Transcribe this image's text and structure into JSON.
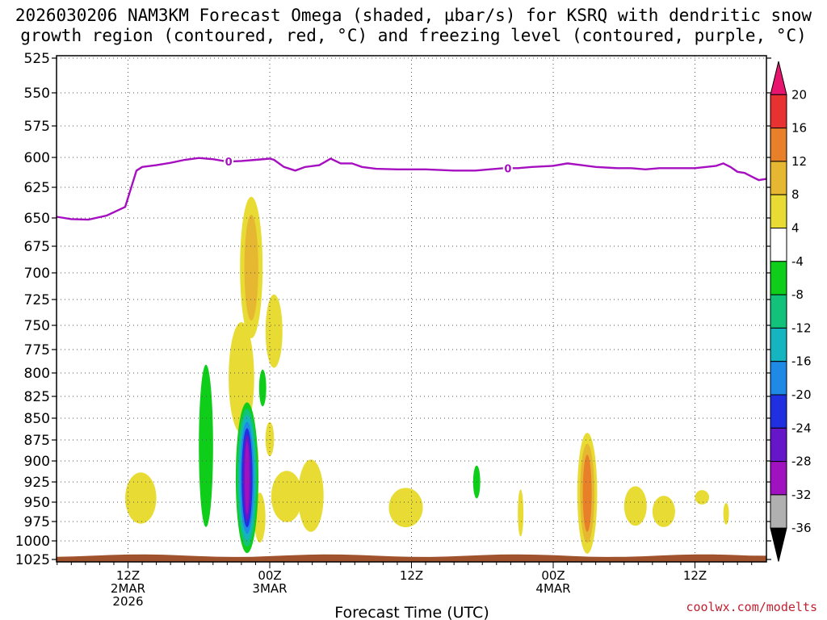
{
  "chart_data": {
    "type": "heatmap",
    "title_line1": "2026030206 NAM3KM Forecast Omega (shaded, µbar/s) for KSRQ with dendritic snow",
    "title_line2": "growth region (contoured, red, °C) and freezing level (contoured, purple, °C)",
    "xlabel": "Forecast Time (UTC)",
    "credit": "coolwx.com/modelts",
    "y_axis": {
      "label_values": [
        "525",
        "550",
        "575",
        "600",
        "625",
        "650",
        "675",
        "700",
        "725",
        "750",
        "775",
        "800",
        "825",
        "850",
        "875",
        "900",
        "925",
        "950",
        "975",
        "1000",
        "1025"
      ],
      "range_hpa": [
        525,
        1025
      ]
    },
    "x_axis": {
      "range_hours": [
        -2,
        48
      ],
      "ticks": [
        {
          "hour": 4,
          "lines": [
            "12Z",
            "2MAR",
            "2026"
          ]
        },
        {
          "hour": 14,
          "lines": [
            "00Z",
            "3MAR"
          ]
        },
        {
          "hour": 24,
          "lines": [
            "12Z"
          ]
        },
        {
          "hour": 34,
          "lines": [
            "00Z",
            "4MAR"
          ]
        },
        {
          "hour": 44,
          "lines": [
            "12Z"
          ]
        }
      ]
    },
    "colorbar": {
      "labels": [
        "20",
        "16",
        "12",
        "8",
        "4",
        "-4",
        "-8",
        "-12",
        "-16",
        "-20",
        "-24",
        "-28",
        "-32",
        "-36"
      ],
      "colors": [
        "#e8156e",
        "#e83232",
        "#e8802a",
        "#e6b832",
        "#e8dc34",
        "#ffffff",
        "#0fce19",
        "#12c27a",
        "#14b5c0",
        "#1e8ae6",
        "#2030e0",
        "#6416c8",
        "#a012c0",
        "#b0b0b0",
        "#000000"
      ]
    },
    "freezing_level": {
      "label": "0",
      "label_hours": [
        11.1,
        30.8
      ],
      "points": [
        [
          -2,
          649
        ],
        [
          0,
          651
        ],
        [
          1.2,
          651.5
        ],
        [
          2.5,
          648
        ],
        [
          3.8,
          641
        ],
        [
          4.6,
          611
        ],
        [
          5,
          608
        ],
        [
          6,
          606.5
        ],
        [
          7,
          604.5
        ],
        [
          8,
          602
        ],
        [
          9,
          600.5
        ],
        [
          10,
          601.5
        ],
        [
          11,
          603.5
        ],
        [
          12,
          603
        ],
        [
          13,
          602
        ],
        [
          14,
          601
        ],
        [
          14.3,
          602
        ],
        [
          15,
          608
        ],
        [
          15.8,
          611
        ],
        [
          16.5,
          608
        ],
        [
          17.5,
          606.5
        ],
        [
          18.3,
          601
        ],
        [
          19,
          605
        ],
        [
          19.8,
          605
        ],
        [
          20.5,
          608
        ],
        [
          21.5,
          609.5
        ],
        [
          23,
          610
        ],
        [
          25,
          610
        ],
        [
          27,
          611
        ],
        [
          28.5,
          611
        ],
        [
          29.5,
          610
        ],
        [
          30.5,
          609
        ],
        [
          31.5,
          609
        ],
        [
          32.5,
          608
        ],
        [
          34,
          607
        ],
        [
          35,
          605
        ],
        [
          36,
          606.5
        ],
        [
          37,
          608
        ],
        [
          38.5,
          609
        ],
        [
          39.5,
          609
        ],
        [
          40.5,
          610
        ],
        [
          41.5,
          609
        ],
        [
          43,
          609
        ],
        [
          44,
          609
        ],
        [
          45.5,
          607
        ],
        [
          46,
          605
        ],
        [
          46.5,
          608
        ],
        [
          47,
          612
        ],
        [
          47.5,
          613
        ],
        [
          48,
          616
        ],
        [
          48.5,
          619
        ],
        [
          49.5,
          618
        ]
      ]
    },
    "omega_features": [
      {
        "hour": 12.7,
        "p": 695,
        "rh": 0.8,
        "rp": 65,
        "value": 8,
        "cat": "up"
      },
      {
        "hour": 12.0,
        "p": 805,
        "rh": 0.9,
        "rp": 60,
        "value": 5,
        "cat": "up"
      },
      {
        "hour": 14.3,
        "p": 756,
        "rh": 0.6,
        "rp": 37,
        "value": 4,
        "cat": "up"
      },
      {
        "hour": 14.0,
        "p": 874,
        "rh": 0.3,
        "rp": 20,
        "value": 4,
        "cat": "up"
      },
      {
        "hour": 13.0,
        "p": 897,
        "rh": 0.2,
        "rp": 18,
        "value": 4,
        "cat": "up"
      },
      {
        "hour": 4.9,
        "p": 945,
        "rh": 1.1,
        "rp": 32,
        "value": 4,
        "cat": "up"
      },
      {
        "hour": 15.2,
        "p": 943,
        "rh": 1.1,
        "rp": 32,
        "value": 4,
        "cat": "up"
      },
      {
        "hour": 16.9,
        "p": 942,
        "rh": 0.9,
        "rp": 45,
        "value": 4,
        "cat": "up"
      },
      {
        "hour": 13.3,
        "p": 970,
        "rh": 0.4,
        "rp": 32,
        "value": 4,
        "cat": "up"
      },
      {
        "hour": 23.6,
        "p": 957,
        "rh": 1.2,
        "rp": 25,
        "value": 4,
        "cat": "up"
      },
      {
        "hour": 31.7,
        "p": 964,
        "rh": 0.2,
        "rp": 30,
        "value": 4,
        "cat": "up"
      },
      {
        "hour": 36.4,
        "p": 939,
        "rh": 0.7,
        "rp": 75,
        "value": 12,
        "cat": "up"
      },
      {
        "hour": 39.8,
        "p": 955,
        "rh": 0.8,
        "rp": 25,
        "value": 4,
        "cat": "up"
      },
      {
        "hour": 41.8,
        "p": 962,
        "rh": 0.8,
        "rp": 20,
        "value": 4,
        "cat": "up"
      },
      {
        "hour": 44.5,
        "p": 944,
        "rh": 0.5,
        "rp": 9,
        "value": 4,
        "cat": "up"
      },
      {
        "hour": 46.2,
        "p": 965,
        "rh": 0.2,
        "rp": 14,
        "value": 4,
        "cat": "up"
      },
      {
        "hour": 12.4,
        "p": 920,
        "rh": 0.8,
        "rp": 92,
        "value": -32,
        "cat": "down"
      },
      {
        "hour": 9.5,
        "p": 882,
        "rh": 0.5,
        "rp": 95,
        "value": -8,
        "cat": "down"
      },
      {
        "hour": 13.5,
        "p": 816,
        "rh": 0.25,
        "rp": 20,
        "value": -8,
        "cat": "down"
      },
      {
        "hour": 28.6,
        "p": 925,
        "rh": 0.25,
        "rp": 20,
        "value": -8,
        "cat": "down"
      }
    ],
    "terrain_surface_hpa": 1021
  }
}
